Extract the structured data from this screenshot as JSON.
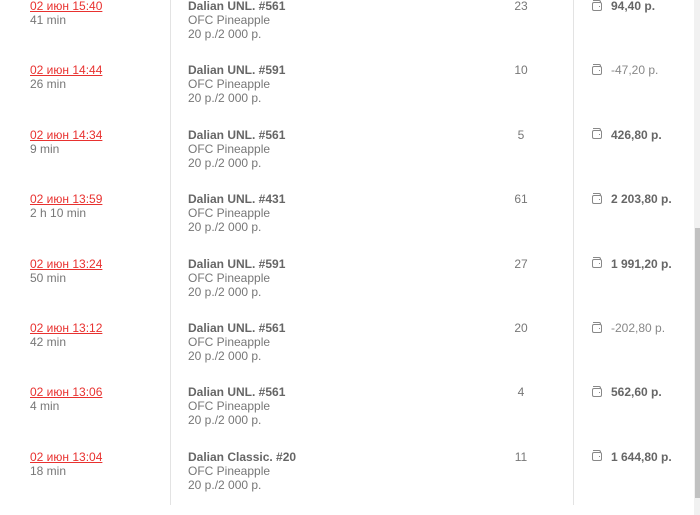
{
  "rows": [
    {
      "date": "02 июн 15:40",
      "duration": "41 min",
      "table": "Dalian UNL. #561",
      "game": "OFC Pineapple",
      "stakes": "20 р./2 000 р.",
      "hands": "23",
      "result": "94,40 р.",
      "positive": true
    },
    {
      "date": "02 июн 14:44",
      "duration": "26 min",
      "table": "Dalian UNL. #591",
      "game": "OFC Pineapple",
      "stakes": "20 р./2 000 р.",
      "hands": "10",
      "result": "-47,20 р.",
      "positive": false
    },
    {
      "date": "02 июн 14:34",
      "duration": "9 min",
      "table": "Dalian UNL. #561",
      "game": "OFC Pineapple",
      "stakes": "20 р./2 000 р.",
      "hands": "5",
      "result": "426,80 р.",
      "positive": true
    },
    {
      "date": "02 июн 13:59",
      "duration": "2 h 10 min",
      "table": "Dalian UNL. #431",
      "game": "OFC Pineapple",
      "stakes": "20 р./2 000 р.",
      "hands": "61",
      "result": "2 203,80 р.",
      "positive": true
    },
    {
      "date": "02 июн 13:24",
      "duration": "50 min",
      "table": "Dalian UNL. #591",
      "game": "OFC Pineapple",
      "stakes": "20 р./2 000 р.",
      "hands": "27",
      "result": "1 991,20 р.",
      "positive": true
    },
    {
      "date": "02 июн 13:12",
      "duration": "42 min",
      "table": "Dalian UNL. #561",
      "game": "OFC Pineapple",
      "stakes": "20 р./2 000 р.",
      "hands": "20",
      "result": "-202,80 р.",
      "positive": false
    },
    {
      "date": "02 июн 13:06",
      "duration": "4 min",
      "table": "Dalian UNL. #561",
      "game": "OFC Pineapple",
      "stakes": "20 р./2 000 р.",
      "hands": "4",
      "result": "562,60 р.",
      "positive": true
    },
    {
      "date": "02 июн 13:04",
      "duration": "18 min",
      "table": "Dalian Classic. #20",
      "game": "OFC Pineapple",
      "stakes": "20 р./2 000 р.",
      "hands": "11",
      "result": "1 644,80 р.",
      "positive": true
    }
  ],
  "colors": {
    "link": "#e8312f",
    "text": "#777777"
  },
  "icons": {
    "result": "wallet-icon"
  },
  "scroll_position_percent": 100
}
